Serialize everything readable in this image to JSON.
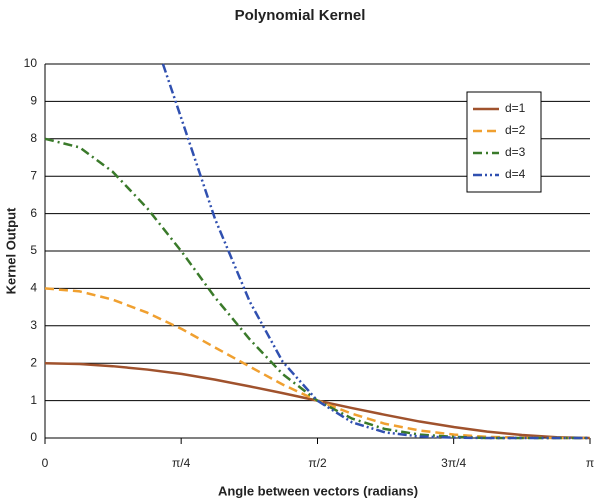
{
  "chart_data": {
    "type": "line",
    "title": "Polynomial Kernel",
    "xlabel": "Angle between vectors (radians)",
    "ylabel": "Kernel Output",
    "x": [
      0,
      0.2,
      0.39,
      0.59,
      0.79,
      0.98,
      1.18,
      1.37,
      1.57,
      1.77,
      1.96,
      2.16,
      2.36,
      2.55,
      2.75,
      2.95,
      3.14
    ],
    "series": [
      {
        "name": "d=1",
        "color": "#a0522d",
        "dash": "none",
        "values": [
          2,
          1.98,
          1.92,
          1.83,
          1.71,
          1.56,
          1.38,
          1.2,
          1,
          0.8,
          0.62,
          0.44,
          0.29,
          0.17,
          0.08,
          0.02,
          0
        ]
      },
      {
        "name": "d=2",
        "color": "#f0a030",
        "dash": "9 5",
        "values": [
          4,
          3.92,
          3.7,
          3.35,
          2.91,
          2.42,
          1.91,
          1.43,
          1,
          0.65,
          0.38,
          0.2,
          0.09,
          0.03,
          0.01,
          0,
          0
        ]
      },
      {
        "name": "d=3",
        "color": "#3a7a2a",
        "dash": "9 4 2 4",
        "values": [
          8,
          7.77,
          7.12,
          6.14,
          4.97,
          3.76,
          2.64,
          1.71,
          1,
          0.52,
          0.24,
          0.09,
          0.03,
          0,
          0,
          0,
          0
        ]
      },
      {
        "name": "d=4",
        "color": "#3050b0",
        "dash": "9 3 2 3 2 3",
        "x": [
          0.68,
          0.79,
          0.98,
          1.18,
          1.37,
          1.57,
          1.77,
          1.96,
          2.16,
          2.36,
          2.55,
          2.75,
          2.95,
          3.14
        ],
        "values": [
          10,
          8.49,
          5.86,
          3.65,
          2.04,
          1,
          0.42,
          0.15,
          0.04,
          0.01,
          0,
          0,
          0,
          0
        ]
      }
    ],
    "xlim": [
      0,
      3.142
    ],
    "xticks": [
      0,
      {
        "value": 0.785,
        "label": "π/4"
      },
      {
        "value": 1.571,
        "label": "π/2"
      },
      {
        "value": 2.356,
        "label": "3π/4"
      },
      {
        "value": 3.142,
        "label": "π"
      }
    ],
    "ylim": [
      0,
      10
    ],
    "yticks": [
      0,
      1,
      2,
      3,
      4,
      5,
      6,
      7,
      8,
      9,
      10
    ],
    "grid": true,
    "legend": "upper right"
  }
}
